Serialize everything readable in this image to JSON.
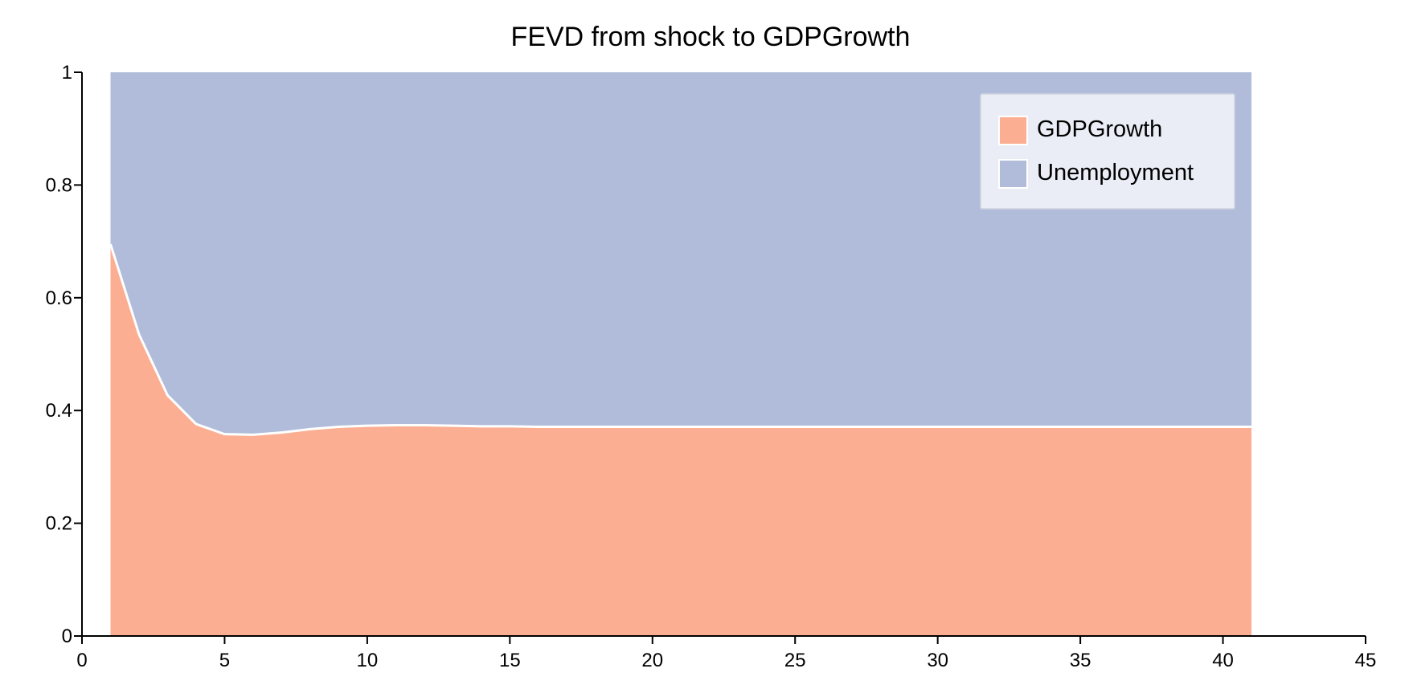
{
  "chart_data": {
    "type": "area",
    "stacked": true,
    "title": "FEVD from shock to GDPGrowth",
    "xlabel": "",
    "ylabel": "",
    "xlim": [
      0,
      45
    ],
    "ylim": [
      0,
      1
    ],
    "xticks": [
      0,
      5,
      10,
      15,
      20,
      25,
      30,
      35,
      40,
      45
    ],
    "yticks": [
      0,
      0.2,
      0.4,
      0.6,
      0.8,
      1
    ],
    "ytick_labels": [
      "0",
      "0.2",
      "0.4",
      "0.6",
      "0.8",
      "1"
    ],
    "legend_position": "top-right",
    "x": [
      1,
      2,
      3,
      4,
      5,
      6,
      7,
      8,
      9,
      10,
      11,
      12,
      13,
      14,
      15,
      16,
      17,
      18,
      19,
      20,
      21,
      22,
      23,
      24,
      25,
      26,
      27,
      28,
      29,
      30,
      31,
      32,
      33,
      34,
      35,
      36,
      37,
      38,
      39,
      40,
      41
    ],
    "series": [
      {
        "name": "GDPGrowth",
        "color": "#fbae91",
        "values": [
          0.695,
          0.535,
          0.427,
          0.376,
          0.358,
          0.357,
          0.361,
          0.367,
          0.371,
          0.373,
          0.374,
          0.374,
          0.373,
          0.372,
          0.372,
          0.371,
          0.371,
          0.371,
          0.371,
          0.371,
          0.371,
          0.371,
          0.371,
          0.371,
          0.371,
          0.371,
          0.371,
          0.371,
          0.371,
          0.371,
          0.371,
          0.371,
          0.371,
          0.371,
          0.371,
          0.371,
          0.371,
          0.371,
          0.371,
          0.371,
          0.371
        ]
      },
      {
        "name": "Unemployment",
        "color": "#b0bcda",
        "values": [
          0.305,
          0.465,
          0.573,
          0.624,
          0.642,
          0.643,
          0.639,
          0.633,
          0.629,
          0.627,
          0.626,
          0.626,
          0.627,
          0.628,
          0.628,
          0.629,
          0.629,
          0.629,
          0.629,
          0.629,
          0.629,
          0.629,
          0.629,
          0.629,
          0.629,
          0.629,
          0.629,
          0.629,
          0.629,
          0.629,
          0.629,
          0.629,
          0.629,
          0.629,
          0.629,
          0.629,
          0.629,
          0.629,
          0.629,
          0.629,
          0.629
        ]
      }
    ]
  }
}
